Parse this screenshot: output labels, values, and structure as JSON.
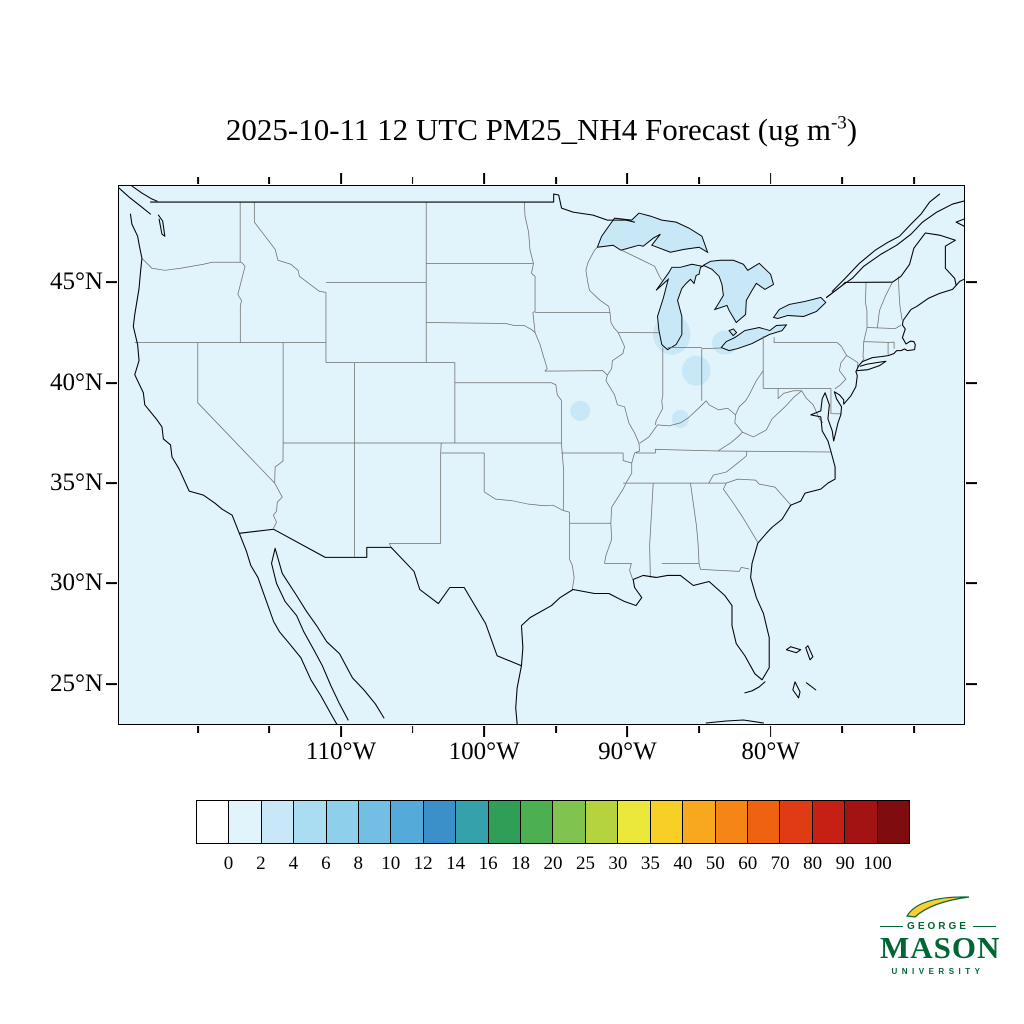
{
  "title": {
    "prefix": "2025-10-11 12 UTC PM25_NH4 Forecast (ug m",
    "exponent": "-3",
    "suffix": ")"
  },
  "chart_data": {
    "type": "heatmap",
    "title": "2025-10-11 12 UTC PM25_NH4 Forecast (ug m-3)",
    "variable": "PM25_NH4",
    "units": "ug m-3",
    "valid_time": "2025-10-11 12 UTC",
    "region": "Continental United States",
    "map_extent": {
      "lon_min": -125.5,
      "lon_max": -66.5,
      "lat_min": 23.0,
      "lat_max": 49.8
    },
    "x_axis": {
      "tick_lons": [
        -110,
        -100,
        -90,
        -80
      ],
      "tick_lab": [
        "110°W",
        "100°W",
        "90°W",
        "80°W"
      ],
      "minor_tick_lons": [
        -120,
        -115,
        -105,
        -95,
        -85,
        -75,
        -70
      ]
    },
    "y_axis": {
      "tick_lats": [
        45,
        40,
        35,
        30,
        25
      ],
      "tick_lab": [
        "45°N",
        "40°N",
        "35°N",
        "30°N",
        "25°N"
      ]
    },
    "colorbar": {
      "boundary_labels": [
        "0",
        "2",
        "4",
        "6",
        "8",
        "10",
        "12",
        "14",
        "16",
        "18",
        "20",
        "25",
        "30",
        "35",
        "40",
        "50",
        "60",
        "70",
        "80",
        "90",
        "100"
      ],
      "colors": [
        "#ffffff",
        "#e1f3fb",
        "#c8e8f7",
        "#aadcf2",
        "#8ecfeb",
        "#72bfe3",
        "#54aad9",
        "#3b90c9",
        "#35a2ab",
        "#2f9e57",
        "#4caf50",
        "#80c34f",
        "#b5d33e",
        "#ece73b",
        "#f7cf27",
        "#f8a81f",
        "#f58516",
        "#ee6211",
        "#e03c13",
        "#c62015",
        "#a31313",
        "#7f0d10"
      ]
    },
    "field_summary": "PM2.5 ammonium concentrations near 0-2 ug m-3 over the whole domain, with small 2-4 ug m-3 patches around the Great Lakes and Midwest",
    "low_value_patches": [
      {
        "lon": -86.9,
        "lat": 42.4,
        "rx": 1.3,
        "ry": 1.0
      },
      {
        "lon": -85.2,
        "lat": 40.6,
        "rx": 1.0,
        "ry": 0.75
      },
      {
        "lon": -83.2,
        "lat": 42.0,
        "rx": 0.9,
        "ry": 0.6
      },
      {
        "lon": -93.3,
        "lat": 38.6,
        "rx": 0.7,
        "ry": 0.5
      },
      {
        "lon": -86.3,
        "lat": 38.2,
        "rx": 0.6,
        "ry": 0.45
      }
    ]
  },
  "branding": {
    "george": "GEORGE",
    "mason": "MASON",
    "university": "UNIVERSITY",
    "green_hex": "#006633",
    "gold_hex": "#ffcc33"
  }
}
